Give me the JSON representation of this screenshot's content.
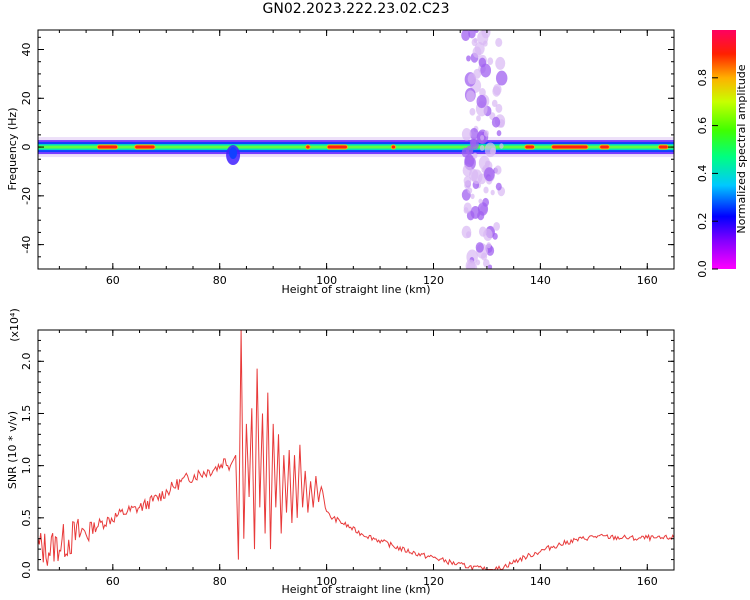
{
  "title": "GN02.2023.222.23.02.C23",
  "chart_data": [
    {
      "type": "heatmap",
      "xlabel": "Height of straight line (km)",
      "ylabel": "Frequency (Hz)",
      "xlim": [
        46,
        165
      ],
      "ylim": [
        -50,
        48
      ],
      "x_ticks": [
        "60",
        "80",
        "100",
        "120",
        "140",
        "160"
      ],
      "y_ticks": [
        "-40",
        "-20",
        "0",
        "20",
        "40"
      ],
      "colorbar": {
        "label": "Normalized spectral amplitude",
        "range": [
          0,
          1
        ],
        "ticks": [
          "0.0",
          "0.2",
          "0.4",
          "0.6",
          "0.8"
        ],
        "colormap": "hsv"
      },
      "ridge": {
        "frequency_hz": 0,
        "strong_segments_km": [
          [
            57,
            61
          ],
          [
            64,
            68
          ],
          [
            96,
            97
          ],
          [
            100,
            104
          ],
          [
            112,
            113
          ],
          [
            137,
            139
          ],
          [
            142,
            149
          ],
          [
            151,
            153
          ],
          [
            162,
            164
          ]
        ],
        "disturbance_km": [
          81,
          84
        ]
      },
      "vertical_noise_band": {
        "x_km": [
          126,
          133
        ],
        "frequency_hz": [
          -50,
          48
        ]
      },
      "grid": false
    },
    {
      "type": "line",
      "xlabel": "Height of straight line (km)",
      "ylabel": "SNR (10 * v/v)",
      "y_multiplier": "(x10⁴)",
      "xlim": [
        46,
        165
      ],
      "ylim": [
        0,
        2.3
      ],
      "x_ticks": [
        "60",
        "80",
        "100",
        "120",
        "140",
        "160"
      ],
      "y_ticks": [
        "0.0",
        "0.5",
        "1.0",
        "1.5",
        "2.0"
      ],
      "color": "#e83a3a",
      "series": [
        {
          "x": [
            46,
            48,
            50,
            52,
            54,
            56,
            58,
            60,
            62,
            64,
            66,
            68,
            70,
            72,
            74,
            76,
            78,
            80,
            81,
            82,
            83,
            83.5,
            84,
            84.5,
            85,
            85.5,
            86,
            86.5,
            87,
            87.5,
            88,
            88.5,
            89,
            89.5,
            90,
            90.5,
            91,
            91.5,
            92,
            92.5,
            93,
            93.5,
            94,
            94.5,
            95,
            95.5,
            96,
            96.5,
            97,
            97.5,
            98,
            98.5,
            99,
            100,
            101,
            102,
            104,
            106,
            108,
            110,
            112,
            114,
            116,
            118,
            120,
            122,
            124,
            126,
            128,
            130,
            132,
            134,
            136,
            138,
            140,
            142,
            144,
            146,
            148,
            150,
            152,
            154,
            156,
            158,
            160,
            162,
            164,
            165
          ],
          "y": [
            0.22,
            0.2,
            0.25,
            0.3,
            0.35,
            0.4,
            0.45,
            0.5,
            0.55,
            0.58,
            0.62,
            0.68,
            0.75,
            0.82,
            0.88,
            0.92,
            0.95,
            1.0,
            1.05,
            1.0,
            1.1,
            0.1,
            2.3,
            0.3,
            1.4,
            0.7,
            1.55,
            0.2,
            1.93,
            0.6,
            1.5,
            0.35,
            1.7,
            0.2,
            1.4,
            0.6,
            1.3,
            0.35,
            1.1,
            0.55,
            1.15,
            0.45,
            1.1,
            0.5,
            1.2,
            0.6,
            0.95,
            0.55,
            0.85,
            0.6,
            0.9,
            0.65,
            0.82,
            0.55,
            0.5,
            0.48,
            0.42,
            0.36,
            0.32,
            0.28,
            0.24,
            0.2,
            0.17,
            0.14,
            0.12,
            0.09,
            0.06,
            0.04,
            0.02,
            0.0,
            0.01,
            0.05,
            0.1,
            0.14,
            0.18,
            0.22,
            0.25,
            0.28,
            0.3,
            0.32,
            0.32,
            0.31,
            0.31,
            0.3,
            0.31,
            0.3,
            0.31,
            0.31
          ]
        }
      ],
      "grid": false
    }
  ]
}
